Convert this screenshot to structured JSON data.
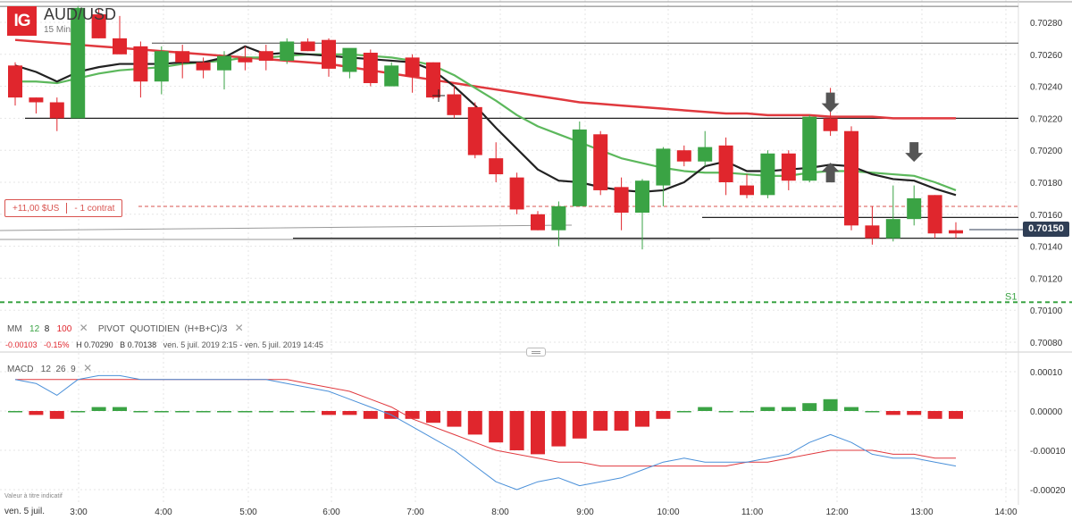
{
  "header": {
    "logo": "IG",
    "symbol": "AUD/USD",
    "interval": "15 Min"
  },
  "indicators": {
    "mm_label": "MM",
    "mm_p1": "12",
    "mm_p2": "8",
    "mm_p3": "100",
    "pivot_label": "PIVOT",
    "pivot_type": "QUOTIDIEN",
    "pivot_formula": "(H+B+C)/3",
    "change_abs": "-0.00103",
    "change_pct": "-0.15%",
    "high": "H 0.70290",
    "low": "B 0.70138",
    "range": "ven. 5 juil. 2019 2:15 - ven. 5 juil. 2019 14:45",
    "macd_label": "MACD",
    "macd_p1": "12",
    "macd_p2": "26",
    "macd_p3": "9",
    "close_icon": "close-icon"
  },
  "position": {
    "pnl": "+11,00 $US",
    "size": "- 1 contrat"
  },
  "footer": {
    "disclaimer": "Valeur à titre indicatif",
    "date_label": "ven. 5 juil."
  },
  "colors": {
    "bull": "#3aa344",
    "bear": "#e0262d",
    "ma_fast": "#222222",
    "ma_mid": "#5cb85c",
    "ma_slow": "#e0393e",
    "macd_line": "#4a90d9",
    "signal_line": "#e0393e",
    "pivot_s1": "#3aa344",
    "price_badge": "#2f3e55"
  },
  "chart_data": [
    {
      "type": "candlestick",
      "title": "AUD/USD",
      "ylim": [
        0.7008,
        0.7029
      ],
      "y_ticks": [
        "0.70280",
        "0.70260",
        "0.70240",
        "0.70220",
        "0.70200",
        "0.70180",
        "0.70160",
        "0.70140",
        "0.70120",
        "0.70100",
        "0.70080"
      ],
      "x_ticks": [
        "3:00",
        "4:00",
        "5:00",
        "6:00",
        "7:00",
        "8:00",
        "9:00",
        "10:00",
        "11:00",
        "12:00",
        "13:00",
        "14:00"
      ],
      "last_price": "0.70150",
      "s1_label": "S1",
      "s1_value": 0.70105,
      "horizontal_levels": [
        0.7029,
        0.70267,
        0.7022,
        0.70158,
        0.70145
      ],
      "candles": [
        {
          "t": "2:15",
          "o": 0.70253,
          "h": 0.70255,
          "l": 0.70228,
          "c": 0.70233
        },
        {
          "t": "2:30",
          "o": 0.70233,
          "h": 0.70233,
          "l": 0.70223,
          "c": 0.7023
        },
        {
          "t": "2:45",
          "o": 0.7023,
          "h": 0.70233,
          "l": 0.70212,
          "c": 0.7022
        },
        {
          "t": "3:00",
          "o": 0.7022,
          "h": 0.7029,
          "l": 0.7022,
          "c": 0.70289
        },
        {
          "t": "3:15",
          "o": 0.70285,
          "h": 0.70289,
          "l": 0.7027,
          "c": 0.7027
        },
        {
          "t": "3:30",
          "o": 0.7027,
          "h": 0.70284,
          "l": 0.7026,
          "c": 0.7026
        },
        {
          "t": "3:45",
          "o": 0.70265,
          "h": 0.70268,
          "l": 0.70233,
          "c": 0.70243
        },
        {
          "t": "4:00",
          "o": 0.70243,
          "h": 0.70265,
          "l": 0.70235,
          "c": 0.70262
        },
        {
          "t": "4:15",
          "o": 0.70262,
          "h": 0.70266,
          "l": 0.70245,
          "c": 0.70255
        },
        {
          "t": "4:30",
          "o": 0.70255,
          "h": 0.70258,
          "l": 0.70245,
          "c": 0.7025
        },
        {
          "t": "4:45",
          "o": 0.7025,
          "h": 0.70262,
          "l": 0.70238,
          "c": 0.70259
        },
        {
          "t": "5:00",
          "o": 0.70258,
          "h": 0.70265,
          "l": 0.7025,
          "c": 0.70255
        },
        {
          "t": "5:15",
          "o": 0.70262,
          "h": 0.70266,
          "l": 0.7025,
          "c": 0.70256
        },
        {
          "t": "5:30",
          "o": 0.70256,
          "h": 0.7027,
          "l": 0.70254,
          "c": 0.70268
        },
        {
          "t": "5:45",
          "o": 0.70268,
          "h": 0.7027,
          "l": 0.70262,
          "c": 0.70262
        },
        {
          "t": "6:00",
          "o": 0.70269,
          "h": 0.7027,
          "l": 0.70246,
          "c": 0.70251
        },
        {
          "t": "6:15",
          "o": 0.70249,
          "h": 0.70262,
          "l": 0.70245,
          "c": 0.70264
        },
        {
          "t": "6:30",
          "o": 0.70261,
          "h": 0.70263,
          "l": 0.7024,
          "c": 0.70242
        },
        {
          "t": "6:45",
          "o": 0.7024,
          "h": 0.70255,
          "l": 0.7024,
          "c": 0.70253
        },
        {
          "t": "7:00",
          "o": 0.70258,
          "h": 0.7026,
          "l": 0.70236,
          "c": 0.70246
        },
        {
          "t": "7:15",
          "o": 0.70255,
          "h": 0.70255,
          "l": 0.70232,
          "c": 0.70233
        },
        {
          "t": "7:30",
          "o": 0.70235,
          "h": 0.7024,
          "l": 0.7022,
          "c": 0.70222
        },
        {
          "t": "7:45",
          "o": 0.70227,
          "h": 0.7023,
          "l": 0.70195,
          "c": 0.70197
        },
        {
          "t": "8:00",
          "o": 0.70195,
          "h": 0.70205,
          "l": 0.7018,
          "c": 0.70185
        },
        {
          "t": "8:15",
          "o": 0.70183,
          "h": 0.70186,
          "l": 0.7016,
          "c": 0.70163
        },
        {
          "t": "8:30",
          "o": 0.7016,
          "h": 0.70162,
          "l": 0.7015,
          "c": 0.7015
        },
        {
          "t": "8:45",
          "o": 0.7015,
          "h": 0.70168,
          "l": 0.7014,
          "c": 0.70165
        },
        {
          "t": "9:00",
          "o": 0.70165,
          "h": 0.70218,
          "l": 0.70165,
          "c": 0.70213
        },
        {
          "t": "9:15",
          "o": 0.7021,
          "h": 0.70212,
          "l": 0.70172,
          "c": 0.70175
        },
        {
          "t": "9:30",
          "o": 0.70177,
          "h": 0.70183,
          "l": 0.7015,
          "c": 0.70161
        },
        {
          "t": "9:45",
          "o": 0.70161,
          "h": 0.70182,
          "l": 0.70138,
          "c": 0.70181
        },
        {
          "t": "10:00",
          "o": 0.70178,
          "h": 0.70202,
          "l": 0.70165,
          "c": 0.70201
        },
        {
          "t": "10:15",
          "o": 0.702,
          "h": 0.70203,
          "l": 0.7019,
          "c": 0.70193
        },
        {
          "t": "10:30",
          "o": 0.70193,
          "h": 0.70212,
          "l": 0.7019,
          "c": 0.70202
        },
        {
          "t": "10:45",
          "o": 0.70203,
          "h": 0.70208,
          "l": 0.70172,
          "c": 0.7018
        },
        {
          "t": "11:00",
          "o": 0.70178,
          "h": 0.70185,
          "l": 0.7017,
          "c": 0.70172
        },
        {
          "t": "11:15",
          "o": 0.70172,
          "h": 0.702,
          "l": 0.7017,
          "c": 0.70198
        },
        {
          "t": "11:30",
          "o": 0.70198,
          "h": 0.702,
          "l": 0.70175,
          "c": 0.70181
        },
        {
          "t": "11:45",
          "o": 0.70181,
          "h": 0.70222,
          "l": 0.7018,
          "c": 0.70221
        },
        {
          "t": "12:00",
          "o": 0.7022,
          "h": 0.70239,
          "l": 0.70209,
          "c": 0.70212
        },
        {
          "t": "12:15",
          "o": 0.70212,
          "h": 0.70215,
          "l": 0.7015,
          "c": 0.70153
        },
        {
          "t": "12:30",
          "o": 0.70153,
          "h": 0.70165,
          "l": 0.70141,
          "c": 0.70145
        },
        {
          "t": "12:45",
          "o": 0.70145,
          "h": 0.70178,
          "l": 0.70143,
          "c": 0.70157
        },
        {
          "t": "13:00",
          "o": 0.70157,
          "h": 0.70178,
          "l": 0.70153,
          "c": 0.7017
        },
        {
          "t": "13:15",
          "o": 0.70172,
          "h": 0.70172,
          "l": 0.70145,
          "c": 0.70148
        },
        {
          "t": "13:30",
          "o": 0.7015,
          "h": 0.70155,
          "l": 0.70145,
          "c": 0.70148
        }
      ],
      "ma_fast": [
        0.70253,
        0.70249,
        0.70243,
        0.70249,
        0.70252,
        0.70254,
        0.70254,
        0.70254,
        0.70255,
        0.70255,
        0.70258,
        0.70265,
        0.7026,
        0.70261,
        0.7026,
        0.70259,
        0.70258,
        0.70257,
        0.70256,
        0.70255,
        0.7025,
        0.7024,
        0.70228,
        0.70214,
        0.70201,
        0.70188,
        0.70181,
        0.7018,
        0.70177,
        0.70175,
        0.70174,
        0.70175,
        0.7018,
        0.7019,
        0.70193,
        0.70187,
        0.70187,
        0.70188,
        0.70189,
        0.70191,
        0.7019,
        0.70185,
        0.70182,
        0.70181,
        0.70176,
        0.70172
      ],
      "ma_mid": [
        0.70243,
        0.70243,
        0.70242,
        0.70245,
        0.70248,
        0.7025,
        0.70251,
        0.70252,
        0.70254,
        0.70255,
        0.70256,
        0.70258,
        0.70258,
        0.70259,
        0.7026,
        0.7026,
        0.7026,
        0.70259,
        0.70258,
        0.70256,
        0.70253,
        0.70247,
        0.70239,
        0.70231,
        0.70222,
        0.70215,
        0.7021,
        0.70205,
        0.702,
        0.70195,
        0.70192,
        0.70189,
        0.70187,
        0.70186,
        0.70186,
        0.70185,
        0.70184,
        0.70184,
        0.70186,
        0.70187,
        0.70187,
        0.70186,
        0.70185,
        0.70184,
        0.7018,
        0.70175
      ],
      "ma_slow": [
        0.70269,
        0.70268,
        0.70267,
        0.70266,
        0.70265,
        0.70264,
        0.70263,
        0.70262,
        0.70261,
        0.7026,
        0.70259,
        0.70258,
        0.70257,
        0.70256,
        0.70255,
        0.70254,
        0.70252,
        0.7025,
        0.70248,
        0.70246,
        0.70244,
        0.70242,
        0.7024,
        0.70238,
        0.70236,
        0.70234,
        0.70232,
        0.7023,
        0.70229,
        0.70228,
        0.70227,
        0.70226,
        0.70225,
        0.70224,
        0.70223,
        0.70223,
        0.70222,
        0.70222,
        0.70222,
        0.70221,
        0.70221,
        0.70221,
        0.7022,
        0.7022,
        0.7022,
        0.7022
      ],
      "markers": [
        {
          "type": "arrow-down",
          "index": 39,
          "price": 0.70226
        },
        {
          "type": "arrow-up",
          "index": 39,
          "price": 0.7019
        },
        {
          "type": "arrow-down",
          "index": 43,
          "price": 0.70195
        }
      ]
    },
    {
      "type": "macd",
      "title": "MACD 12 26 9",
      "ylim": [
        -0.00021,
        0.00013
      ],
      "y_ticks": [
        "0.00010",
        "0.00000",
        "-0.00010",
        "-0.00020"
      ],
      "histogram": [
        0.0,
        -1e-05,
        -2e-05,
        0.0,
        1e-05,
        1e-05,
        0.0,
        0.0,
        0.0,
        0.0,
        0.0,
        0.0,
        0.0,
        0.0,
        0.0,
        -1e-05,
        -1e-05,
        -2e-05,
        -2e-05,
        -2e-05,
        -3e-05,
        -4e-05,
        -6e-05,
        -8e-05,
        -0.0001,
        -0.00011,
        -9e-05,
        -7e-05,
        -5e-05,
        -5e-05,
        -4e-05,
        -2e-05,
        0.0,
        1e-05,
        0.0,
        0.0,
        1e-05,
        1e-05,
        2e-05,
        3e-05,
        1e-05,
        0.0,
        -1e-05,
        -1e-05,
        -2e-05,
        -2e-05
      ],
      "macd_line": [
        8e-05,
        7e-05,
        4e-05,
        8e-05,
        9e-05,
        9e-05,
        8e-05,
        8e-05,
        8e-05,
        8e-05,
        8e-05,
        8e-05,
        8e-05,
        7e-05,
        6e-05,
        5e-05,
        3e-05,
        1e-05,
        -1e-05,
        -4e-05,
        -7e-05,
        -0.0001,
        -0.00014,
        -0.00018,
        -0.0002,
        -0.00018,
        -0.00017,
        -0.00019,
        -0.00018,
        -0.00017,
        -0.00015,
        -0.00013,
        -0.00012,
        -0.00013,
        -0.00013,
        -0.00013,
        -0.00012,
        -0.00011,
        -8e-05,
        -6e-05,
        -8e-05,
        -0.00011,
        -0.00012,
        -0.00012,
        -0.00013,
        -0.00014
      ],
      "signal_line": [
        8e-05,
        8e-05,
        8e-05,
        8e-05,
        8e-05,
        8e-05,
        8e-05,
        8e-05,
        8e-05,
        8e-05,
        8e-05,
        8e-05,
        8e-05,
        8e-05,
        7e-05,
        6e-05,
        5e-05,
        3e-05,
        1e-05,
        -2e-05,
        -4e-05,
        -6e-05,
        -8e-05,
        -0.0001,
        -0.00011,
        -0.00012,
        -0.00013,
        -0.00013,
        -0.00014,
        -0.00014,
        -0.00014,
        -0.00014,
        -0.00014,
        -0.00014,
        -0.00014,
        -0.00013,
        -0.00013,
        -0.00012,
        -0.00011,
        -0.0001,
        -0.0001,
        -0.0001,
        -0.00011,
        -0.00011,
        -0.00012,
        -0.00012
      ]
    }
  ]
}
